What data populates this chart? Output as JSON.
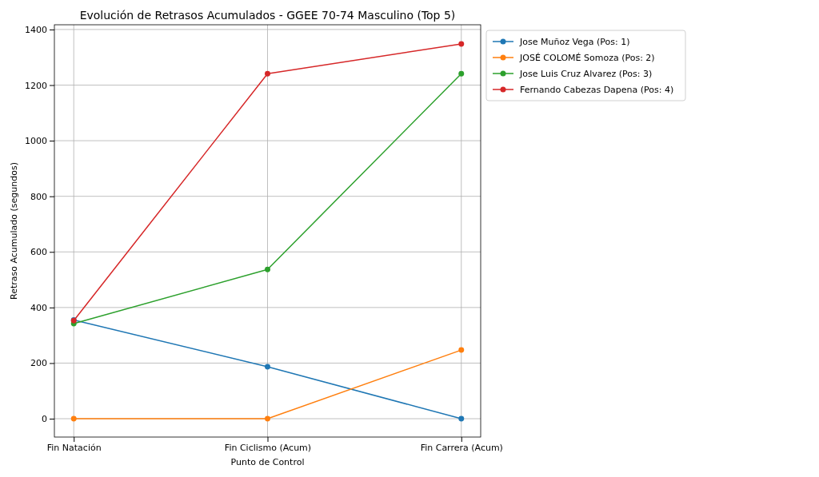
{
  "chart_data": {
    "type": "line",
    "title": "Evolución de Retrasos Acumulados - GGEE 70-74 Masculino (Top 5)",
    "xlabel": "Punto de Control",
    "ylabel": "Retraso Acumulado (segundos)",
    "categories": [
      "Fin Natación",
      "Fin Ciclismo (Acum)",
      "Fin Carrera (Acum)"
    ],
    "series": [
      {
        "name": "Jose Muñoz Vega (Pos: 1)",
        "color": "#1f77b4",
        "values": [
          355,
          187,
          0
        ]
      },
      {
        "name": "JOSÉ COLOMÉ Somoza (Pos: 2)",
        "color": "#ff7f0e",
        "values": [
          0,
          0,
          247
        ]
      },
      {
        "name": "Jose Luis Cruz Alvarez (Pos: 3)",
        "color": "#2ca02c",
        "values": [
          342,
          537,
          1241
        ]
      },
      {
        "name": "Fernando Cabezas Dapena (Pos: 4)",
        "color": "#d62728",
        "values": [
          353,
          1241,
          1348
        ]
      }
    ],
    "ylim": [
      -66,
      1417
    ],
    "yticks": [
      0,
      200,
      400,
      600,
      800,
      1000,
      1200,
      1400
    ],
    "grid": true,
    "legend": "top right",
    "marker": "circle",
    "line_style": "solid"
  }
}
